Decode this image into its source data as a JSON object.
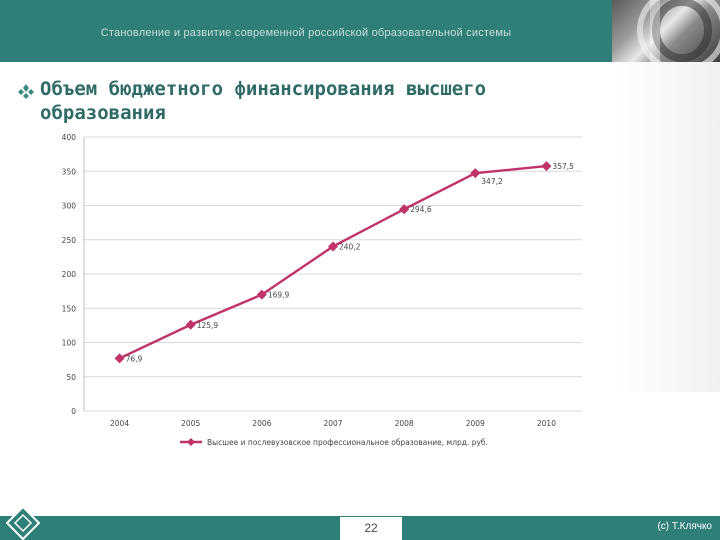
{
  "header": {
    "title": "Становление и развитие современной российской образовательной системы"
  },
  "heading": {
    "text": "Объем бюджетного финансирования высшего образования"
  },
  "colors": {
    "header": "#2e7f78",
    "series": "#c0326a",
    "heading": "#2e6b66"
  },
  "icons": {
    "bullet": "diamond-bullet-icon",
    "badge": "diamond-badge-icon"
  },
  "chart_data": {
    "type": "line",
    "x": [
      "2004",
      "2005",
      "2006",
      "2007",
      "2008",
      "2009",
      "2010"
    ],
    "y_ticks": [
      "0",
      "50",
      "100",
      "150",
      "200",
      "250",
      "300",
      "350",
      "400"
    ],
    "ylim": [
      0,
      400
    ],
    "grid": true,
    "legend_position": "bottom",
    "series": [
      {
        "name": "Высшее и послевузовское профессиональное образование, млрд. руб.",
        "values": [
          76.9,
          125.9,
          169.9,
          240.2,
          294.6,
          347.2,
          357.5
        ],
        "labels": [
          "76,9",
          "125,9",
          "169,9",
          "240,2",
          "294,6",
          "347,2",
          "357,5"
        ]
      }
    ]
  },
  "footer": {
    "page_number": "22",
    "copyright": "(с) Т.Клячко"
  }
}
